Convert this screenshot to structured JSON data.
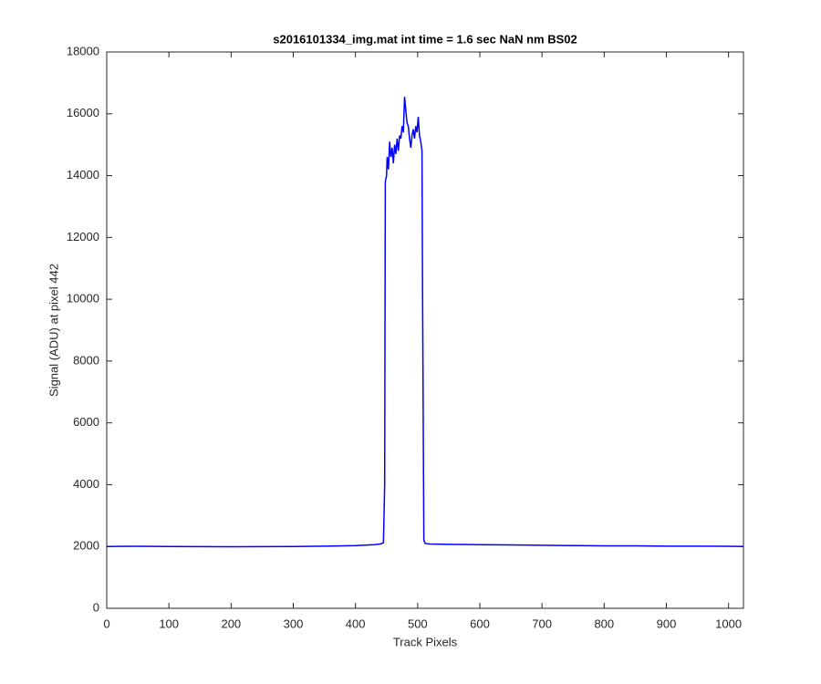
{
  "chart_data": {
    "type": "line",
    "title": "s2016101334_img.mat int time = 1.6 sec  NaN nm BS02",
    "x_label": "Track Pixels",
    "y_label": "Signal (ADU) at pixel 442",
    "x": [
      0,
      50,
      100,
      150,
      200,
      250,
      300,
      350,
      400,
      430,
      440,
      445,
      447,
      448,
      450,
      451,
      453,
      455,
      457,
      459,
      461,
      463,
      465,
      467,
      469,
      471,
      473,
      475,
      477,
      479,
      481,
      483,
      485,
      487,
      489,
      491,
      493,
      495,
      497,
      499,
      501,
      503,
      505,
      507,
      508,
      510,
      512,
      520,
      550,
      600,
      650,
      700,
      750,
      800,
      850,
      900,
      950,
      1000,
      1024
    ],
    "values": [
      2000,
      2005,
      2000,
      1995,
      1990,
      1995,
      2000,
      2010,
      2030,
      2060,
      2080,
      2120,
      4000,
      13800,
      14000,
      14600,
      14200,
      15100,
      14600,
      14900,
      14400,
      15000,
      14700,
      15200,
      14800,
      15300,
      15200,
      15600,
      15400,
      16550,
      16100,
      15700,
      15600,
      15200,
      14900,
      15300,
      15500,
      15200,
      15600,
      15400,
      15900,
      15300,
      15100,
      14800,
      10000,
      2200,
      2100,
      2080,
      2070,
      2060,
      2050,
      2040,
      2030,
      2020,
      2020,
      2010,
      2010,
      2005,
      2000
    ],
    "color": "#0000ff",
    "xlim": [
      0,
      1024
    ],
    "xticks": [
      0,
      100,
      200,
      300,
      400,
      500,
      600,
      700,
      800,
      900,
      1000
    ],
    "ylim": [
      0,
      18000
    ],
    "yticks": [
      0,
      2000,
      4000,
      6000,
      8000,
      10000,
      12000,
      14000,
      16000,
      18000
    ]
  }
}
